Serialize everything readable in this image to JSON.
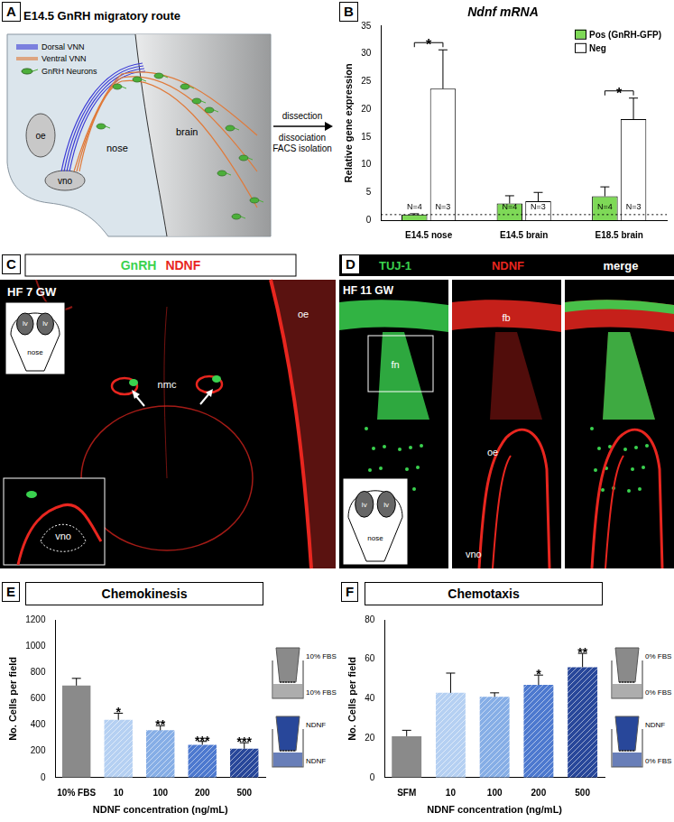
{
  "panels": [
    {
      "letter": "A",
      "title": "E14.5 GnRH migratory route",
      "legend": [
        {
          "name": "Dorsal VNN",
          "color": "#3b3bd6"
        },
        {
          "name": "Ventral VNN",
          "color": "#e07a3a"
        },
        {
          "name": "GnRH Neurons",
          "color": "#4caf3a"
        }
      ],
      "labels": [
        "oe",
        "vno",
        "nose",
        "brain"
      ],
      "arrow_text": [
        "dissection",
        "dissociation",
        "FACS isolation"
      ]
    },
    {
      "letter": "C",
      "header": [
        {
          "text": "GnRH",
          "color": "#3ad24f"
        },
        {
          "text": "NDNF",
          "color": "#e8261f"
        }
      ],
      "stage": "HF 7 GW",
      "schematic_labels": [
        "lv",
        "lv",
        "nose"
      ],
      "labels": [
        "nmc",
        "oe"
      ],
      "inset_labels": [
        "vno"
      ]
    },
    {
      "letter": "D",
      "header": [
        {
          "text": "TUJ-1",
          "color": "#3ad24f"
        },
        {
          "text": "NDNF",
          "color": "#e8261f"
        },
        {
          "text": "merge",
          "color": "#ffffff"
        }
      ],
      "stage": "HF 11 GW",
      "schematic_labels": [
        "lv",
        "lv",
        "nose"
      ],
      "subpanel_labels": [
        [
          "fn"
        ],
        [
          "fb",
          "oe",
          "vno"
        ],
        []
      ]
    }
  ],
  "chart_data": [
    {
      "panel": "B",
      "type": "bar",
      "title": "Ndnf mRNA",
      "ylabel": "Relative gene expression",
      "categories": [
        "E14.5 nose",
        "E14.5 brain",
        "E18.5 brain"
      ],
      "series": [
        {
          "name": "Pos (GnRH-GFP)",
          "color": "#7ed957",
          "values": [
            1.0,
            3.0,
            4.3
          ],
          "errors": [
            0.15,
            1.4,
            1.7
          ],
          "n_labels": [
            "N=4",
            "N=4",
            "N=4"
          ]
        },
        {
          "name": "Neg",
          "color": "#ffffff",
          "values": [
            23.7,
            3.4,
            18.2
          ],
          "errors": [
            7.0,
            1.6,
            3.8
          ],
          "n_labels": [
            "N=3",
            "N=3",
            "N=3"
          ]
        }
      ],
      "significance": [
        "*",
        null,
        "*"
      ],
      "reference_line": 1,
      "ylim": [
        0,
        35
      ],
      "yticks": [
        0,
        5,
        10,
        15,
        20,
        25,
        30,
        35
      ],
      "legend": "upper right",
      "grid": false
    },
    {
      "panel": "E",
      "type": "bar",
      "title": "Chemokinesis",
      "ylabel": "No. Cells per field",
      "xlabel": "NDNF concentration (ng/mL)",
      "categories": [
        "10% FBS",
        "10",
        "100",
        "200",
        "500"
      ],
      "values": [
        700,
        440,
        360,
        250,
        220
      ],
      "errors": [
        55,
        50,
        35,
        25,
        45
      ],
      "colors": [
        "#8a8a8a",
        "#b5d0f2",
        "#86aee6",
        "#4d79cf",
        "#28479a"
      ],
      "significance": [
        null,
        "*",
        "**",
        "***",
        "***"
      ],
      "ylim": [
        0,
        1200
      ],
      "yticks": [
        0,
        200,
        400,
        600,
        800,
        1000,
        1200
      ],
      "grid": false,
      "inset": [
        {
          "upper": "10% FBS",
          "lower": "10% FBS"
        },
        {
          "upper": "NDNF",
          "lower": "NDNF"
        }
      ]
    },
    {
      "panel": "F",
      "type": "bar",
      "title": "Chemotaxis",
      "ylabel": "No. Cells per field",
      "xlabel": "NDNF concentration (ng/mL)",
      "categories": [
        "SFM",
        "10",
        "100",
        "200",
        "500"
      ],
      "values": [
        21,
        43,
        41,
        47,
        56
      ],
      "errors": [
        3,
        10,
        2,
        5,
        7
      ],
      "colors": [
        "#8a8a8a",
        "#b5d0f2",
        "#86aee6",
        "#4d79cf",
        "#28479a"
      ],
      "significance": [
        null,
        null,
        null,
        "*",
        "**"
      ],
      "ylim": [
        0,
        80
      ],
      "yticks": [
        0,
        20,
        40,
        60,
        80
      ],
      "grid": false,
      "inset": [
        {
          "upper": "0% FBS",
          "lower": "0% FBS"
        },
        {
          "upper": "NDNF",
          "lower": "0% FBS"
        }
      ]
    }
  ]
}
